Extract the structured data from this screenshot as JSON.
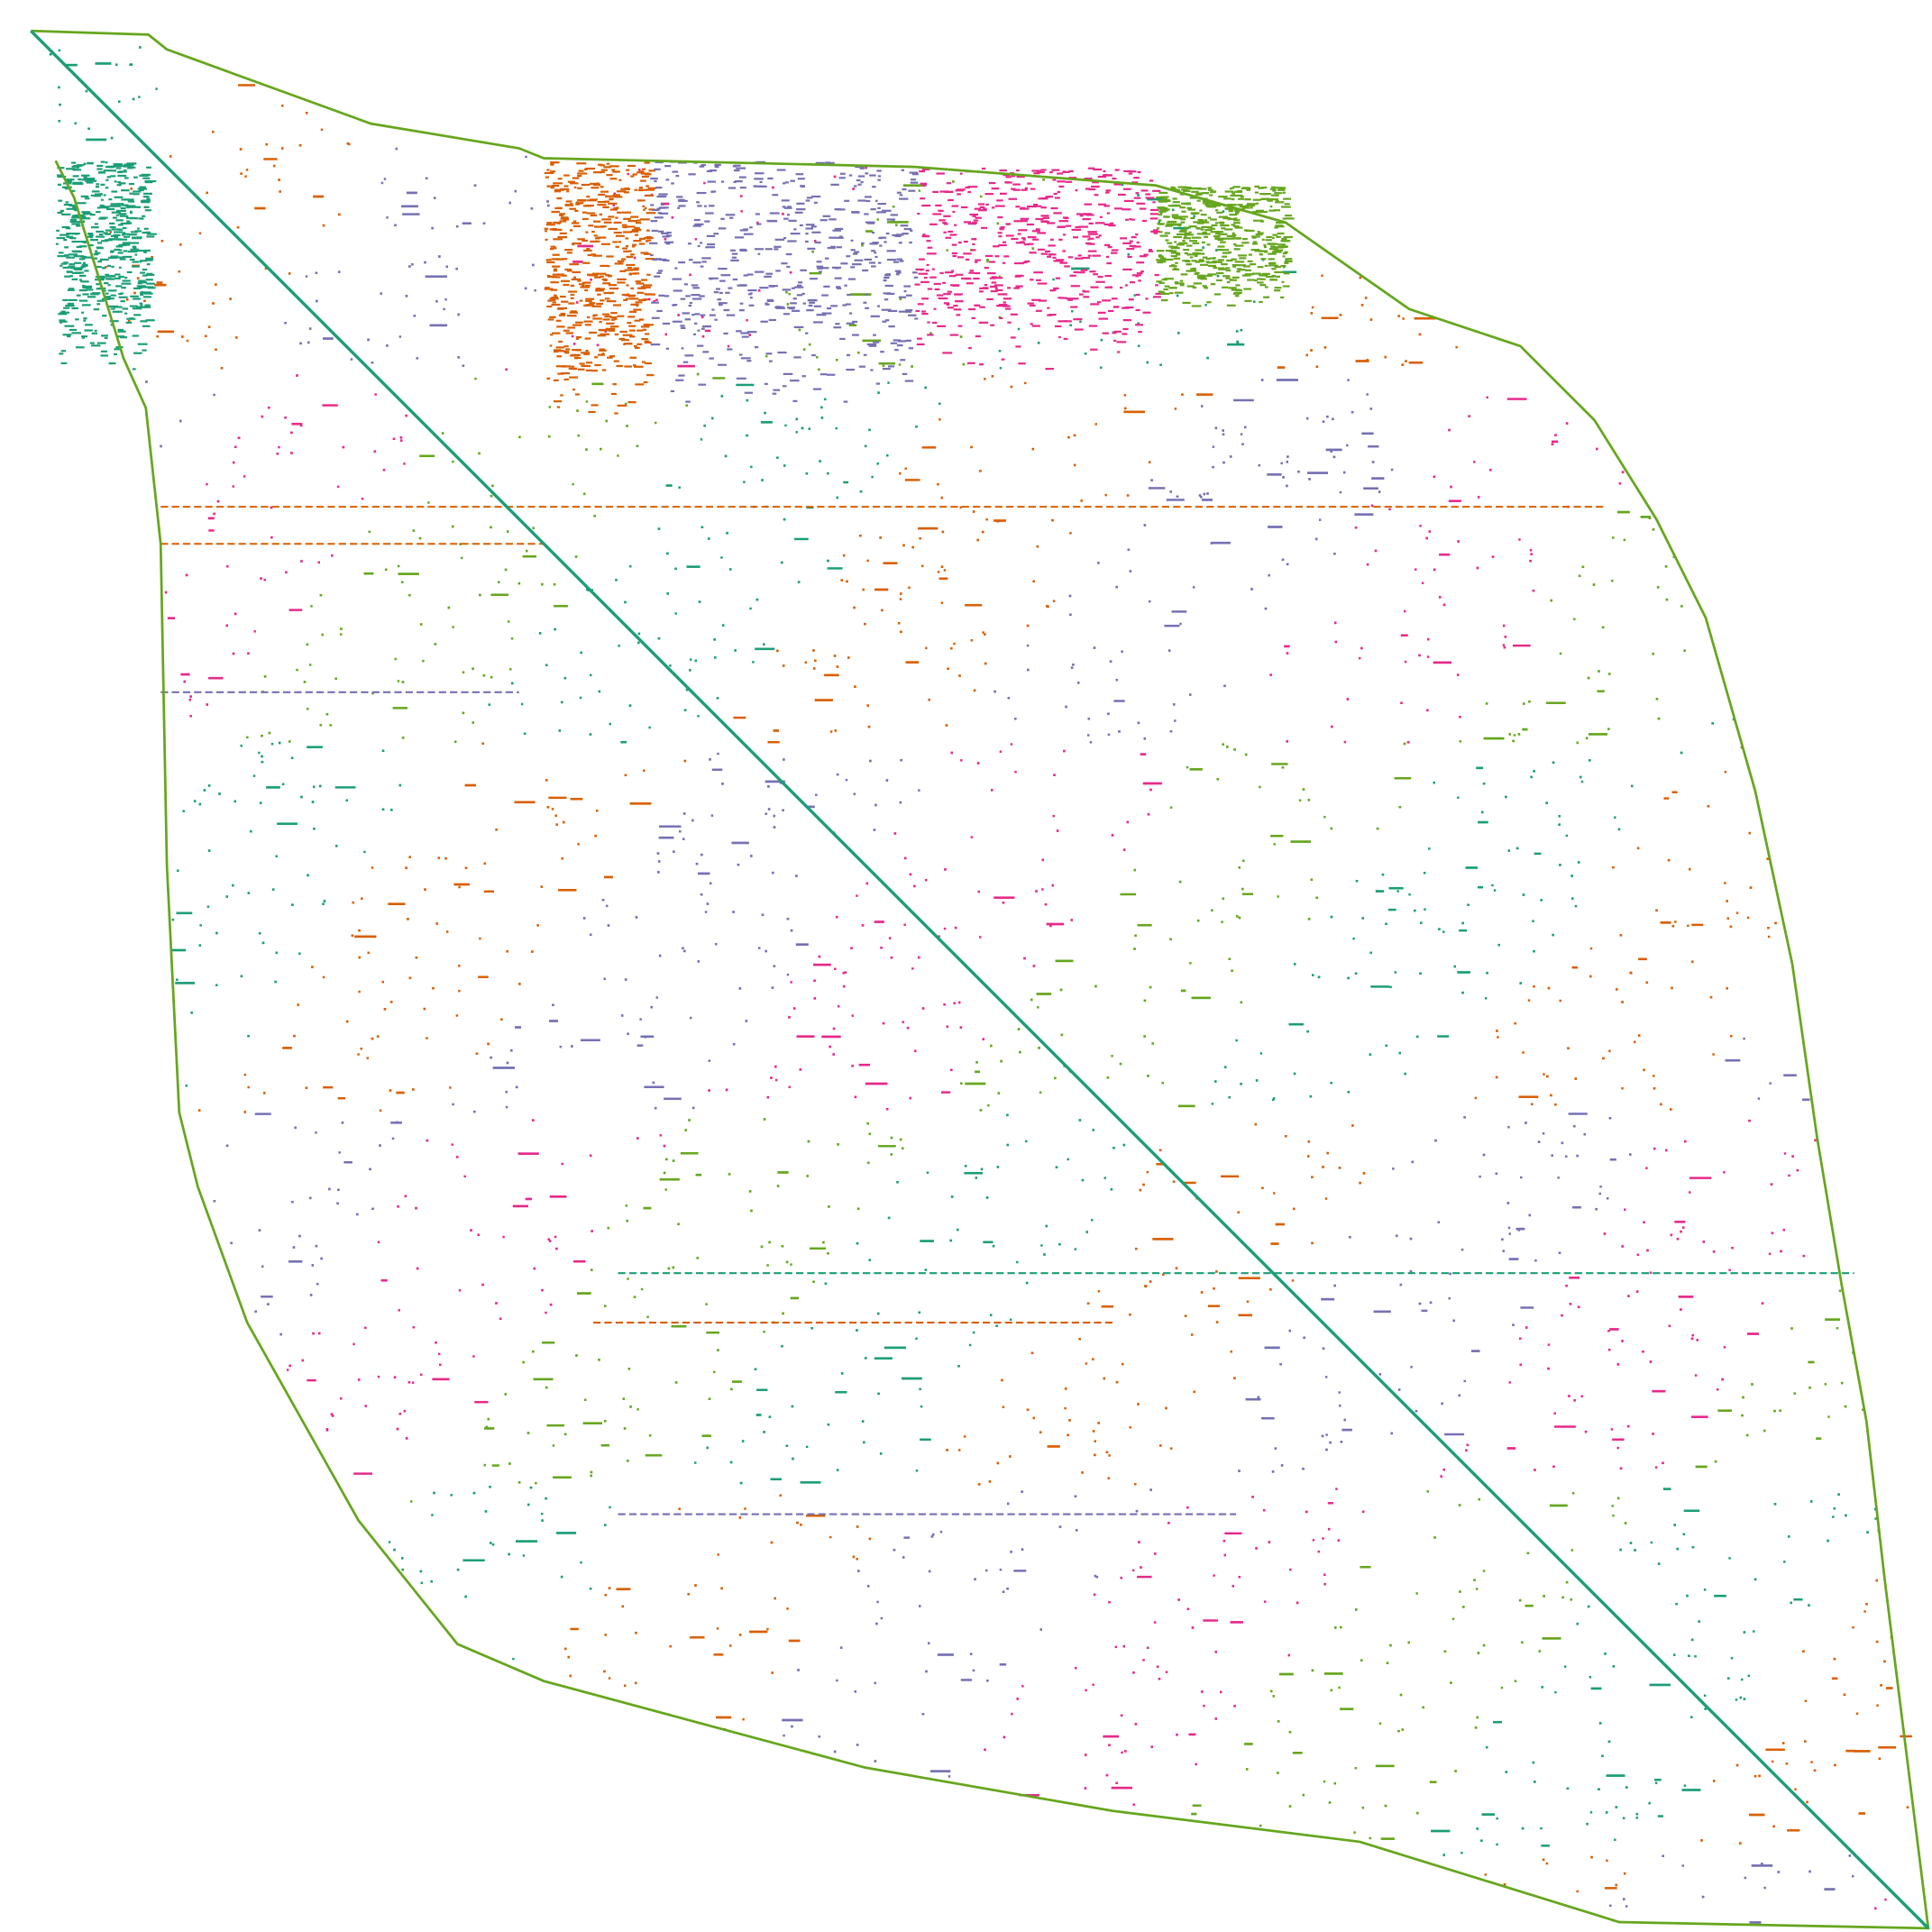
{
  "palette": [
    "#1b9e77",
    "#d95f02",
    "#7570b3",
    "#e7298a",
    "#66a61e"
  ]
}
